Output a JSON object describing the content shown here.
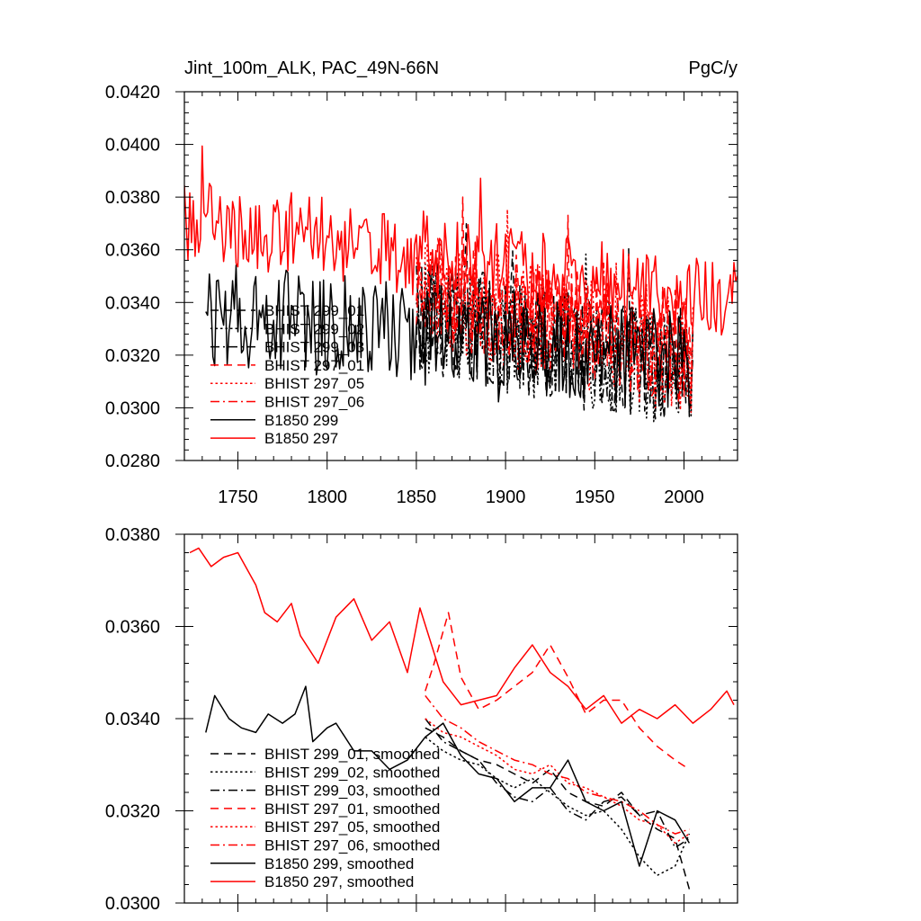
{
  "figure": {
    "title_left": "Jint_100m_ALK, PAC_49N-66N",
    "title_right": "PgC/y"
  },
  "colors": {
    "black": "#000000",
    "red": "#ff0000"
  },
  "chart_data": [
    {
      "type": "line",
      "title": "Jint_100m_ALK, PAC_49N-66N",
      "units": "PgC/y",
      "xlim": [
        1720,
        2030
      ],
      "ylim": [
        0.028,
        0.042
      ],
      "x_ticks": [
        1750,
        1800,
        1850,
        1900,
        1950,
        2000
      ],
      "x_tick_labels": [
        "1750",
        "1800",
        "1850",
        "1900",
        "1950",
        "2000"
      ],
      "y_ticks": [
        0.028,
        0.03,
        0.032,
        0.034,
        0.036,
        0.038,
        0.04,
        0.042
      ],
      "y_tick_labels": [
        "0.0280",
        "0.0300",
        "0.0320",
        "0.0340",
        "0.0360",
        "0.0380",
        "0.0400",
        "0.0420"
      ],
      "legend_position": "lower-left",
      "series": [
        {
          "name": "BHIST 299_01",
          "color": "#000000",
          "dash": "dashed",
          "x_start": 1850,
          "x_end": 2005,
          "start": 0.0334,
          "end": 0.0315,
          "noise": 0.0022,
          "min": 0.0285,
          "max": 0.037
        },
        {
          "name": "BHIST 299_02",
          "color": "#000000",
          "dash": "dotted",
          "x_start": 1850,
          "x_end": 2005,
          "start": 0.0334,
          "end": 0.0312,
          "noise": 0.0022,
          "min": 0.0285,
          "max": 0.037
        },
        {
          "name": "BHIST 299_03",
          "color": "#000000",
          "dash": "dashdot",
          "x_start": 1850,
          "x_end": 2005,
          "start": 0.0334,
          "end": 0.0315,
          "noise": 0.002,
          "min": 0.0285,
          "max": 0.037
        },
        {
          "name": "BHIST 297_01",
          "color": "#ff0000",
          "dash": "dashed",
          "x_start": 1850,
          "x_end": 2005,
          "start": 0.0346,
          "end": 0.0322,
          "noise": 0.0022,
          "min": 0.0283,
          "max": 0.038
        },
        {
          "name": "BHIST 297_05",
          "color": "#ff0000",
          "dash": "dotted",
          "x_start": 1850,
          "x_end": 2005,
          "start": 0.0346,
          "end": 0.0318,
          "noise": 0.0022,
          "min": 0.0283,
          "max": 0.038
        },
        {
          "name": "BHIST 297_06",
          "color": "#ff0000",
          "dash": "dashdot",
          "x_start": 1850,
          "x_end": 2005,
          "start": 0.0346,
          "end": 0.032,
          "noise": 0.002,
          "min": 0.0283,
          "max": 0.038
        },
        {
          "name": "B1850 299",
          "color": "#000000",
          "dash": "solid",
          "x_start": 1732,
          "x_end": 2003,
          "start": 0.0336,
          "end": 0.0318,
          "noise": 0.002,
          "min": 0.0292,
          "max": 0.0368
        },
        {
          "name": "B1850 297",
          "color": "#ff0000",
          "dash": "solid",
          "x_start": 1720,
          "x_end": 2030,
          "start": 0.0372,
          "end": 0.034,
          "noise": 0.0016,
          "min": 0.0305,
          "max": 0.0401
        }
      ]
    },
    {
      "type": "line",
      "title": "",
      "xlim": [
        1720,
        2030
      ],
      "ylim": [
        0.03,
        0.038
      ],
      "x_ticks": [
        1750,
        1800,
        1850,
        1900,
        1950,
        2000
      ],
      "x_tick_labels": [],
      "y_ticks": [
        0.03,
        0.032,
        0.034,
        0.036,
        0.038
      ],
      "y_tick_labels": [
        "0.0300",
        "0.0320",
        "0.0340",
        "0.0360",
        "0.0380"
      ],
      "legend_position": "lower-left",
      "series": [
        {
          "name": "BHIST 299_01, smoothed",
          "color": "#000000",
          "dash": "dashed",
          "x": [
            1855,
            1865,
            1875,
            1885,
            1895,
            1905,
            1915,
            1925,
            1935,
            1945,
            1955,
            1965,
            1975,
            1985,
            1995,
            2003
          ],
          "y": [
            0.0338,
            0.0336,
            0.0333,
            0.0331,
            0.033,
            0.0328,
            0.0326,
            0.0329,
            0.0324,
            0.0322,
            0.0321,
            0.0324,
            0.0319,
            0.0316,
            0.0314,
            0.0303
          ]
        },
        {
          "name": "BHIST 299_02, smoothed",
          "color": "#000000",
          "dash": "dotted",
          "x": [
            1855,
            1865,
            1875,
            1885,
            1895,
            1905,
            1915,
            1925,
            1935,
            1945,
            1955,
            1965,
            1975,
            1985,
            1995,
            2003
          ],
          "y": [
            0.0336,
            0.0333,
            0.0331,
            0.033,
            0.0327,
            0.0325,
            0.0327,
            0.0324,
            0.0321,
            0.0319,
            0.032,
            0.0316,
            0.031,
            0.0306,
            0.0308,
            0.0315
          ]
        },
        {
          "name": "BHIST 299_03, smoothed",
          "color": "#000000",
          "dash": "dashdot",
          "x": [
            1855,
            1865,
            1875,
            1885,
            1895,
            1905,
            1915,
            1925,
            1935,
            1945,
            1955,
            1965,
            1975,
            1985,
            1995,
            2003
          ],
          "y": [
            0.034,
            0.0335,
            0.0333,
            0.0331,
            0.0326,
            0.0323,
            0.0322,
            0.0325,
            0.032,
            0.0318,
            0.0322,
            0.0323,
            0.0319,
            0.032,
            0.0312,
            0.0314
          ]
        },
        {
          "name": "BHIST 297_01, smoothed",
          "color": "#ff0000",
          "dash": "dashed",
          "x": [
            1855,
            1860,
            1868,
            1875,
            1885,
            1895,
            1905,
            1915,
            1925,
            1935,
            1945,
            1955,
            1965,
            1975,
            1985,
            1995,
            2003
          ],
          "y": [
            0.0346,
            0.0352,
            0.0363,
            0.0349,
            0.0342,
            0.0344,
            0.0347,
            0.035,
            0.0356,
            0.0349,
            0.0341,
            0.0344,
            0.0344,
            0.0338,
            0.0334,
            0.0331,
            0.0329
          ]
        },
        {
          "name": "BHIST 297_05, smoothed",
          "color": "#ff0000",
          "dash": "dotted",
          "x": [
            1855,
            1865,
            1875,
            1885,
            1895,
            1905,
            1915,
            1925,
            1935,
            1945,
            1955,
            1965,
            1975,
            1985,
            1995,
            2003
          ],
          "y": [
            0.034,
            0.0337,
            0.0336,
            0.0334,
            0.0332,
            0.0329,
            0.0328,
            0.033,
            0.0326,
            0.0325,
            0.0323,
            0.0321,
            0.0318,
            0.0317,
            0.0313,
            0.0315
          ]
        },
        {
          "name": "BHIST 297_06, smoothed",
          "color": "#ff0000",
          "dash": "dashdot",
          "x": [
            1855,
            1865,
            1875,
            1885,
            1895,
            1905,
            1915,
            1925,
            1935,
            1945,
            1955,
            1965,
            1975,
            1985,
            1995,
            2003
          ],
          "y": [
            0.0345,
            0.034,
            0.0338,
            0.0335,
            0.0333,
            0.0331,
            0.033,
            0.0328,
            0.0327,
            0.0324,
            0.0323,
            0.0322,
            0.032,
            0.0317,
            0.0315,
            0.0316
          ]
        },
        {
          "name": "B1850 299, smoothed",
          "color": "#000000",
          "dash": "solid",
          "x": [
            1732,
            1737,
            1745,
            1752,
            1760,
            1767,
            1775,
            1782,
            1788,
            1792,
            1800,
            1805,
            1815,
            1825,
            1835,
            1845,
            1855,
            1865,
            1875,
            1885,
            1895,
            1905,
            1915,
            1925,
            1935,
            1945,
            1955,
            1965,
            1975,
            1985,
            1995,
            2003
          ],
          "y": [
            0.0337,
            0.0345,
            0.034,
            0.0338,
            0.0337,
            0.0341,
            0.0339,
            0.0341,
            0.0347,
            0.0335,
            0.0338,
            0.0339,
            0.0333,
            0.0333,
            0.0329,
            0.0331,
            0.0336,
            0.0339,
            0.0332,
            0.0328,
            0.0327,
            0.0322,
            0.0325,
            0.0325,
            0.0331,
            0.0322,
            0.032,
            0.0322,
            0.0308,
            0.032,
            0.0318,
            0.0313
          ]
        },
        {
          "name": "B1850 297, smoothed",
          "color": "#ff0000",
          "dash": "solid",
          "x": [
            1723,
            1728,
            1735,
            1742,
            1750,
            1760,
            1765,
            1772,
            1780,
            1785,
            1795,
            1805,
            1815,
            1825,
            1835,
            1845,
            1852,
            1865,
            1875,
            1885,
            1895,
            1905,
            1915,
            1925,
            1935,
            1945,
            1955,
            1965,
            1975,
            1985,
            1995,
            2005,
            2015,
            2024,
            2028
          ],
          "y": [
            0.0376,
            0.0377,
            0.0373,
            0.0375,
            0.0376,
            0.0369,
            0.0363,
            0.0361,
            0.0365,
            0.0358,
            0.0352,
            0.0362,
            0.0366,
            0.0357,
            0.0361,
            0.035,
            0.0364,
            0.0348,
            0.0343,
            0.0344,
            0.0345,
            0.0351,
            0.0356,
            0.035,
            0.0347,
            0.0342,
            0.0345,
            0.0339,
            0.0342,
            0.034,
            0.0343,
            0.0339,
            0.0342,
            0.0346,
            0.0343
          ]
        }
      ]
    }
  ]
}
